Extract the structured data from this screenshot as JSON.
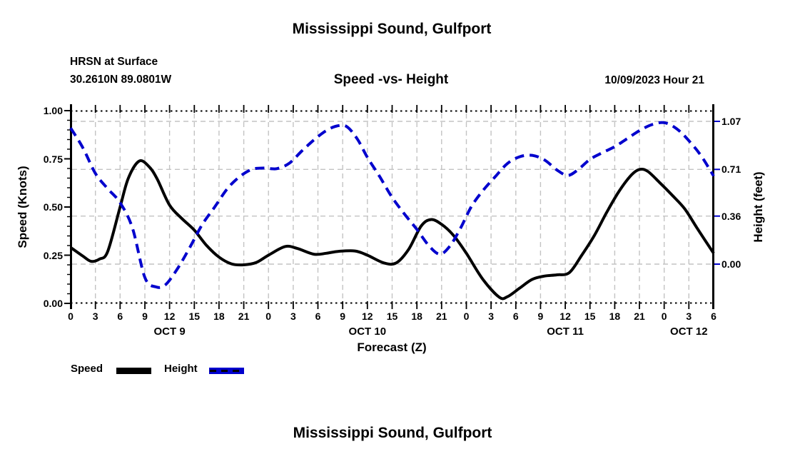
{
  "header": {
    "title": "Mississippi Sound, Gulfport",
    "station": "HRSN at Surface",
    "coords": "30.2610N  89.0801W",
    "chart_title": "Speed -vs- Height",
    "datetime": "10/09/2023 Hour 21"
  },
  "legend": {
    "speed_label": "Speed",
    "height_label": "Height"
  },
  "footer": {
    "title": "Mississippi Sound, Gulfport"
  },
  "colors": {
    "speed": "#000000",
    "height": "#0000cd",
    "grid": "#c3c3c3",
    "background": "#ffffff"
  },
  "chart_data": {
    "type": "line",
    "title": "Speed -vs- Height",
    "xlabel": "Forecast (Z)",
    "ylabel_left": "Speed (Knots)",
    "ylabel_right": "Height (feet)",
    "grid": true,
    "legend_position": "below-left",
    "x_hours_range": [
      0,
      78
    ],
    "x_tick_interval_hours": 3,
    "x_tick_labels": [
      "0",
      "3",
      "6",
      "9",
      "12",
      "15",
      "18",
      "21",
      "0",
      "3",
      "6",
      "9",
      "12",
      "15",
      "18",
      "21",
      "0",
      "3",
      "6",
      "9",
      "12",
      "15",
      "18",
      "21",
      "0",
      "3",
      "6"
    ],
    "x_day_labels": [
      {
        "label": "OCT 9",
        "hour": 12
      },
      {
        "label": "OCT 10",
        "hour": 36
      },
      {
        "label": "OCT 11",
        "hour": 60
      },
      {
        "label": "OCT 12",
        "hour": 75
      }
    ],
    "y_left": {
      "range": [
        0,
        1
      ],
      "tick_values": [
        0,
        0.25,
        0.5,
        0.75,
        1
      ],
      "tick_labels": [
        "0.00",
        "0.25",
        "0.50",
        "0.75",
        "1.00"
      ],
      "minor_tick_step": 0.05
    },
    "y_right": {
      "range": [
        -0.294,
        1.15
      ],
      "ticks": [
        {
          "label": "0.00",
          "value": 0
        },
        {
          "label": "0.36",
          "value": 0.36
        },
        {
          "label": "0.71",
          "value": 0.71
        },
        {
          "label": "1.07",
          "value": 1.07
        }
      ]
    },
    "series": [
      {
        "name": "Speed",
        "axis": "left",
        "unit": "knots",
        "style": "solid",
        "color": "#000000",
        "points": [
          [
            0,
            0.29
          ],
          [
            1.5,
            0.245
          ],
          [
            2.5,
            0.218
          ],
          [
            3.5,
            0.23
          ],
          [
            4.5,
            0.27
          ],
          [
            6,
            0.5
          ],
          [
            7,
            0.65
          ],
          [
            8.3,
            0.738
          ],
          [
            9.5,
            0.71
          ],
          [
            10.5,
            0.645
          ],
          [
            12,
            0.51
          ],
          [
            13.5,
            0.44
          ],
          [
            15,
            0.38
          ],
          [
            16.5,
            0.3
          ],
          [
            18,
            0.24
          ],
          [
            19.5,
            0.205
          ],
          [
            21,
            0.2
          ],
          [
            22.5,
            0.212
          ],
          [
            24,
            0.25
          ],
          [
            26,
            0.295
          ],
          [
            27.5,
            0.285
          ],
          [
            29.5,
            0.255
          ],
          [
            31,
            0.26
          ],
          [
            32.5,
            0.27
          ],
          [
            34.5,
            0.272
          ],
          [
            36,
            0.25
          ],
          [
            38,
            0.21
          ],
          [
            39.5,
            0.21
          ],
          [
            41,
            0.28
          ],
          [
            42.5,
            0.4
          ],
          [
            43.7,
            0.435
          ],
          [
            45,
            0.41
          ],
          [
            46.5,
            0.35
          ],
          [
            48,
            0.26
          ],
          [
            50,
            0.125
          ],
          [
            52,
            0.032
          ],
          [
            53,
            0.035
          ],
          [
            54.5,
            0.08
          ],
          [
            56,
            0.125
          ],
          [
            57.5,
            0.142
          ],
          [
            59,
            0.148
          ],
          [
            60.5,
            0.16
          ],
          [
            62,
            0.25
          ],
          [
            63.5,
            0.35
          ],
          [
            65,
            0.47
          ],
          [
            66.5,
            0.58
          ],
          [
            68,
            0.665
          ],
          [
            69,
            0.695
          ],
          [
            70,
            0.685
          ],
          [
            71.5,
            0.625
          ],
          [
            73,
            0.56
          ],
          [
            74.5,
            0.49
          ],
          [
            76,
            0.39
          ],
          [
            78,
            0.26
          ]
        ]
      },
      {
        "name": "Height",
        "axis": "right",
        "unit": "feet",
        "style": "dashed",
        "color": "#0000cd",
        "points": [
          [
            0,
            1.02
          ],
          [
            1.5,
            0.87
          ],
          [
            3,
            0.68
          ],
          [
            4.5,
            0.565
          ],
          [
            6,
            0.46
          ],
          [
            7.5,
            0.27
          ],
          [
            9,
            -0.1
          ],
          [
            10.3,
            -0.17
          ],
          [
            11.5,
            -0.155
          ],
          [
            13,
            -0.03
          ],
          [
            14.5,
            0.13
          ],
          [
            16,
            0.3
          ],
          [
            17.5,
            0.43
          ],
          [
            19,
            0.565
          ],
          [
            20.5,
            0.655
          ],
          [
            22,
            0.71
          ],
          [
            23.5,
            0.72
          ],
          [
            25,
            0.715
          ],
          [
            26.5,
            0.755
          ],
          [
            28,
            0.845
          ],
          [
            29.5,
            0.93
          ],
          [
            31,
            1.0
          ],
          [
            32.3,
            1.035
          ],
          [
            33.5,
            1.03
          ],
          [
            34.8,
            0.935
          ],
          [
            36,
            0.8
          ],
          [
            37.5,
            0.655
          ],
          [
            39,
            0.5
          ],
          [
            40.5,
            0.375
          ],
          [
            42,
            0.26
          ],
          [
            43.5,
            0.135
          ],
          [
            44.8,
            0.075
          ],
          [
            46,
            0.135
          ],
          [
            47.3,
            0.27
          ],
          [
            48.6,
            0.43
          ],
          [
            50,
            0.55
          ],
          [
            51.5,
            0.655
          ],
          [
            53,
            0.755
          ],
          [
            54.5,
            0.805
          ],
          [
            56,
            0.815
          ],
          [
            57.5,
            0.78
          ],
          [
            59,
            0.705
          ],
          [
            60.3,
            0.665
          ],
          [
            61.5,
            0.705
          ],
          [
            63,
            0.785
          ],
          [
            64.5,
            0.835
          ],
          [
            66,
            0.88
          ],
          [
            67.5,
            0.94
          ],
          [
            69,
            1.0
          ],
          [
            70.5,
            1.045
          ],
          [
            72,
            1.06
          ],
          [
            73.5,
            1.015
          ],
          [
            75,
            0.925
          ],
          [
            76.5,
            0.81
          ],
          [
            78,
            0.66
          ]
        ]
      }
    ]
  }
}
